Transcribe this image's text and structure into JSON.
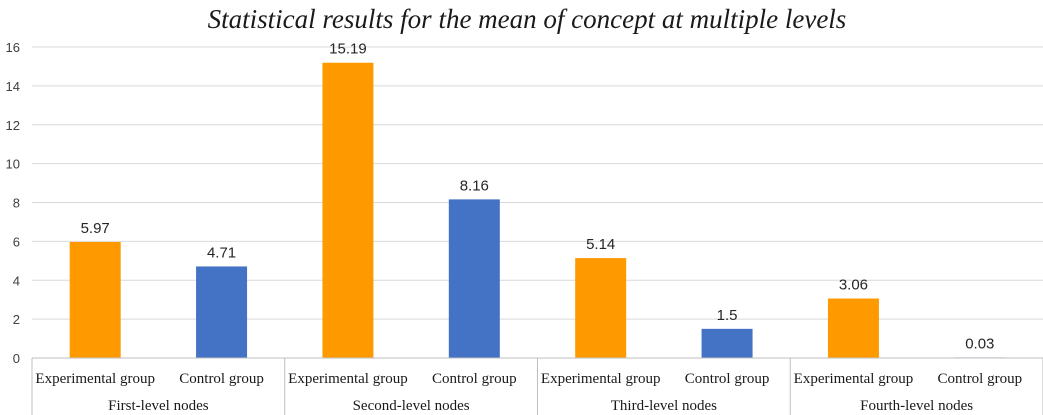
{
  "chart_data": {
    "type": "bar",
    "title": "Statistical results for the mean of concept at multiple levels",
    "xlabel": "",
    "ylabel": "",
    "ylim": [
      0,
      16
    ],
    "yticks": [
      0,
      2,
      4,
      6,
      8,
      10,
      12,
      14,
      16
    ],
    "grid": true,
    "groups": [
      "First-level nodes",
      "Second-level nodes",
      "Third-level nodes",
      "Fourth-level nodes"
    ],
    "subcategories": [
      "Experimental group",
      "Control group"
    ],
    "bars": [
      {
        "group": "First-level nodes",
        "category": "Experimental group",
        "value": 5.97,
        "label": "5.97"
      },
      {
        "group": "First-level nodes",
        "category": "Control group",
        "value": 4.71,
        "label": "4.71"
      },
      {
        "group": "Second-level nodes",
        "category": "Experimental group",
        "value": 15.19,
        "label": "15.19"
      },
      {
        "group": "Second-level nodes",
        "category": "Control group",
        "value": 8.16,
        "label": "8.16"
      },
      {
        "group": "Third-level nodes",
        "category": "Experimental group",
        "value": 5.14,
        "label": "5.14"
      },
      {
        "group": "Third-level nodes",
        "category": "Control group",
        "value": 1.5,
        "label": "1.5"
      },
      {
        "group": "Fourth-level nodes",
        "category": "Experimental group",
        "value": 3.06,
        "label": "3.06"
      },
      {
        "group": "Fourth-level nodes",
        "category": "Control group",
        "value": 0.03,
        "label": "0.03"
      }
    ],
    "colors": {
      "Experimental group": "#ff9900",
      "Control group": "#4472c4"
    }
  }
}
